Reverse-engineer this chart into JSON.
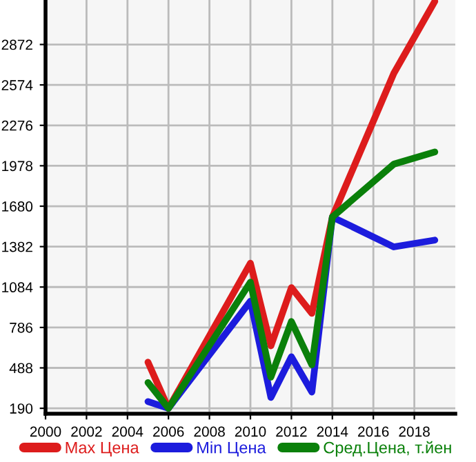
{
  "chart_data": {
    "type": "line",
    "x": [
      2005,
      2006,
      2010,
      2011,
      2012,
      2013,
      2014,
      2017,
      2019
    ],
    "series": [
      {
        "name": "Max Цена",
        "color": "#dd1c1c",
        "values": [
          530,
          190,
          1260,
          650,
          1080,
          890,
          1600,
          2660,
          3190
        ]
      },
      {
        "name": "Min Цена",
        "color": "#1c1cdd",
        "values": [
          240,
          190,
          980,
          270,
          570,
          310,
          1600,
          1380,
          1430
        ]
      },
      {
        "name": "Сред.Цена, т.йен",
        "color": "#0a800a",
        "values": [
          380,
          190,
          1120,
          420,
          830,
          510,
          1600,
          1990,
          2080
        ]
      }
    ],
    "xlim": [
      2000,
      2020
    ],
    "ylim": [
      150,
      3200
    ],
    "xticks": [
      2000,
      2002,
      2004,
      2006,
      2008,
      2010,
      2012,
      2014,
      2016,
      2018
    ],
    "yticks": [
      190,
      488,
      786,
      1084,
      1382,
      1680,
      1978,
      2276,
      2574,
      2872
    ],
    "grid": true,
    "legend": "bottom",
    "marker": "none",
    "line_style": "solid"
  }
}
